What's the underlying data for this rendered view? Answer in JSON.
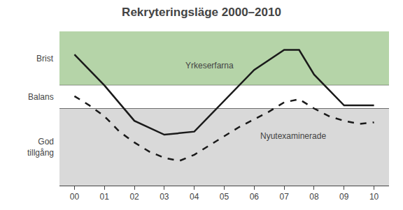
{
  "chart_data": {
    "type": "line",
    "title": "Rekryteringsläge 2000–2010",
    "series": [
      {
        "name": "Yrkeserfarna",
        "color": "#1a1a1a",
        "line_style": "solid",
        "x": [
          0,
          1,
          2,
          3,
          4,
          5,
          6,
          7,
          7.5,
          8,
          9,
          10
        ],
        "values": [
          8.5,
          6.5,
          4.2,
          3.3,
          3.5,
          5.5,
          7.5,
          8.8,
          8.8,
          7.2,
          5.2,
          5.2
        ]
      },
      {
        "name": "Nyutexaminerade",
        "color": "#1a1a1a",
        "line_style": "dashed",
        "x": [
          0,
          0.5,
          1,
          1.5,
          2,
          2.5,
          3,
          3.5,
          4,
          4.5,
          5,
          5.5,
          6,
          6.5,
          7,
          7.5,
          8,
          8.5,
          9,
          9.5,
          10
        ],
        "values": [
          5.8,
          5.2,
          4.5,
          3.5,
          2.8,
          2.2,
          1.8,
          1.6,
          2.0,
          2.6,
          3.2,
          3.8,
          4.3,
          4.8,
          5.4,
          5.6,
          5.0,
          4.5,
          4.2,
          4.0,
          4.1
        ]
      }
    ],
    "bands": [
      {
        "label": "Brist",
        "from": 6.5,
        "to": 10,
        "color": "#b5d4a8"
      },
      {
        "label": "Balans",
        "from": 5.0,
        "to": 6.5,
        "color": "#ffffff"
      },
      {
        "label": "God\ntillgång",
        "from": 0,
        "to": 5.0,
        "color": "#d9d9d9"
      }
    ],
    "xlim": [
      -0.5,
      10.5
    ],
    "xticks": [
      {
        "value": 0,
        "label": "00"
      },
      {
        "value": 1,
        "label": "01"
      },
      {
        "value": 2,
        "label": "02"
      },
      {
        "value": 3,
        "label": "03"
      },
      {
        "value": 4,
        "label": "04"
      },
      {
        "value": 5,
        "label": "05"
      },
      {
        "value": 6,
        "label": "06"
      },
      {
        "value": 7,
        "label": "07"
      },
      {
        "value": 8,
        "label": "08"
      },
      {
        "value": 9,
        "label": "09"
      },
      10
    ],
    "ylim": [
      0,
      10
    ],
    "tick_labels": "x",
    "grid": false
  }
}
